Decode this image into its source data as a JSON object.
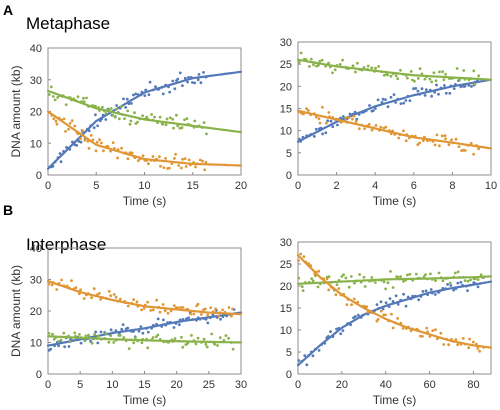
{
  "figure": {
    "panel_labels": [
      "A",
      "B"
    ],
    "section_titles": [
      "Metaphase",
      "Interphase"
    ]
  },
  "colors": {
    "blue": "#5479b8",
    "green": "#89b34a",
    "orange": "#e09634",
    "axis": "#8c8c8c"
  },
  "chart_data": [
    {
      "type": "scatter",
      "panel": "A",
      "title": "",
      "xlabel": "Time (s)",
      "ylabel": "DNA amount (kb)",
      "xlim": [
        0,
        20
      ],
      "ylim": [
        0,
        40
      ],
      "xticks": [
        0,
        5,
        10,
        15,
        20
      ],
      "yticks": [
        0,
        10,
        20,
        30,
        40
      ],
      "grid": false,
      "x_end": 16.5,
      "series": [
        {
          "color": "blue",
          "trend": "rising",
          "fit": {
            "x": [
              0,
              5,
              10,
              15,
              20
            ],
            "y": [
              2,
              17,
              26,
              30.5,
              32.5
            ]
          }
        },
        {
          "color": "green",
          "trend": "falling",
          "fit": {
            "x": [
              0,
              5,
              10,
              15,
              20
            ],
            "y": [
              26.5,
              21,
              17.5,
              15.5,
              13.5
            ]
          }
        },
        {
          "color": "orange",
          "trend": "falling",
          "fit": {
            "x": [
              0,
              5,
              10,
              15,
              20
            ],
            "y": [
              20,
              9.5,
              5,
              3.5,
              3
            ]
          }
        }
      ]
    },
    {
      "type": "scatter",
      "panel": "A",
      "title": "",
      "xlabel": "Time (s)",
      "ylabel": "",
      "xlim": [
        0,
        10
      ],
      "ylim": [
        0,
        30
      ],
      "xticks": [
        0,
        2,
        4,
        6,
        8,
        10
      ],
      "yticks": [
        0,
        5,
        10,
        15,
        20,
        25,
        30
      ],
      "grid": false,
      "x_end": 9.4,
      "series": [
        {
          "color": "blue",
          "trend": "rising",
          "fit": {
            "x": [
              0,
              2,
              4,
              6,
              8,
              10
            ],
            "y": [
              7.5,
              12,
              15.5,
              18,
              20,
              21.5
            ]
          }
        },
        {
          "color": "green",
          "trend": "falling",
          "fit": {
            "x": [
              0,
              2,
              4,
              6,
              8,
              10
            ],
            "y": [
              26,
              24.5,
              23.5,
              22.5,
              22,
              21.5
            ]
          }
        },
        {
          "color": "orange",
          "trend": "falling",
          "fit": {
            "x": [
              0,
              2,
              4,
              6,
              8,
              10
            ],
            "y": [
              14.5,
              12.5,
              10.5,
              8.5,
              7.3,
              6
            ]
          }
        }
      ]
    },
    {
      "type": "scatter",
      "panel": "B",
      "title": "",
      "xlabel": "Time (s)",
      "ylabel": "DNA amount (kb)",
      "xlim": [
        0,
        30
      ],
      "ylim": [
        0,
        40
      ],
      "xticks": [
        0,
        5,
        10,
        15,
        20,
        25,
        30
      ],
      "yticks": [
        0,
        10,
        20,
        30,
        40
      ],
      "grid": false,
      "x_end": 29,
      "series": [
        {
          "color": "blue",
          "trend": "rising",
          "fit": {
            "x": [
              0,
              5,
              10,
              15,
              20,
              25,
              30
            ],
            "y": [
              9,
              11,
              13,
              14.5,
              16.5,
              18,
              19.5
            ]
          }
        },
        {
          "color": "green",
          "trend": "falling",
          "fit": {
            "x": [
              0,
              5,
              10,
              15,
              20,
              25,
              30
            ],
            "y": [
              12,
              11.5,
              11,
              10.7,
              10.4,
              10.2,
              10
            ]
          }
        },
        {
          "color": "orange",
          "trend": "falling",
          "fit": {
            "x": [
              0,
              5,
              10,
              15,
              20,
              25,
              30
            ],
            "y": [
              29.5,
              26,
              23.5,
              21.5,
              20.5,
              19.5,
              19
            ]
          }
        }
      ]
    },
    {
      "type": "scatter",
      "panel": "B",
      "title": "",
      "xlabel": "Time (s)",
      "ylabel": "",
      "xlim": [
        0,
        88
      ],
      "ylim": [
        0,
        30
      ],
      "xticks": [
        0,
        20,
        40,
        60,
        80
      ],
      "yticks": [
        0,
        5,
        10,
        15,
        20,
        25,
        30
      ],
      "grid": false,
      "x_end": 85,
      "series": [
        {
          "color": "blue",
          "trend": "rising",
          "fit": {
            "x": [
              0,
              10,
              20,
              30,
              40,
              50,
              60,
              70,
              80,
              88
            ],
            "y": [
              2,
              6.5,
              10.5,
              13.5,
              15.5,
              17,
              18.5,
              19.5,
              20.3,
              21
            ]
          }
        },
        {
          "color": "green",
          "trend": "flat",
          "fit": {
            "x": [
              0,
              20,
              40,
              60,
              80,
              88
            ],
            "y": [
              20.5,
              21,
              21.5,
              21.7,
              22,
              22.2
            ]
          }
        },
        {
          "color": "orange",
          "trend": "falling",
          "fit": {
            "x": [
              0,
              10,
              20,
              30,
              40,
              50,
              60,
              70,
              80,
              88
            ],
            "y": [
              27,
              22,
              18,
              15,
              12.5,
              10.5,
              9,
              7.5,
              6.5,
              6
            ]
          }
        }
      ]
    }
  ]
}
